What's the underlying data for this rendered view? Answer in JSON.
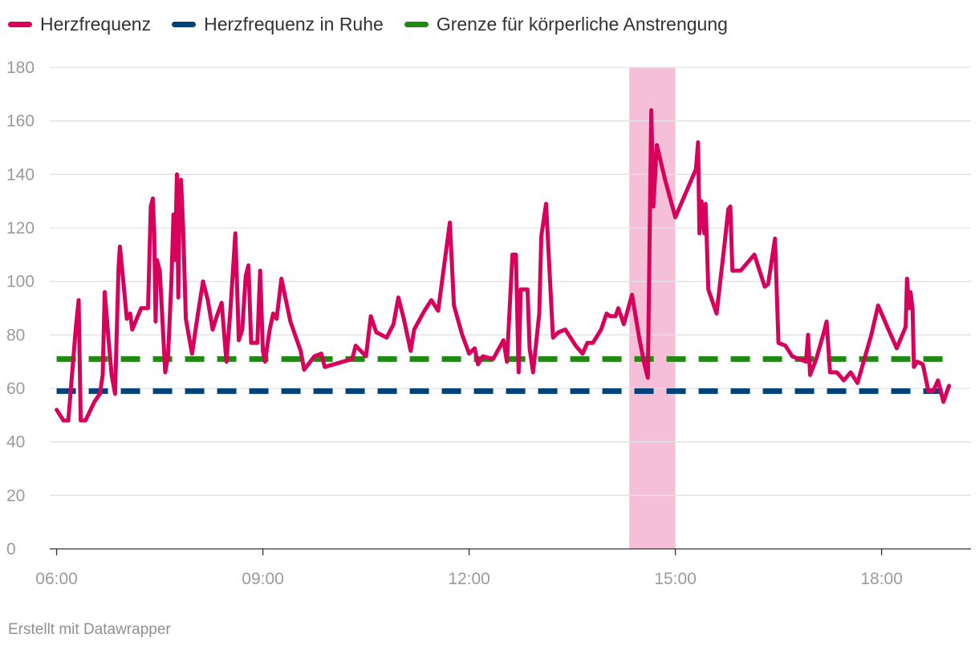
{
  "legend": [
    {
      "label": "Herzfrequenz",
      "color": "#d8005a"
    },
    {
      "label": "Herzfrequenz in Ruhe",
      "color": "#00427a"
    },
    {
      "label": "Grenze für körperliche Anstrengung",
      "color": "#1f8a12"
    }
  ],
  "credit": "Erstellt mit Datawrapper",
  "chart_data": {
    "type": "line",
    "title": "",
    "xlabel": "",
    "ylabel": "",
    "x_unit": "hours of day",
    "xlim": [
      5.9,
      19.3
    ],
    "ylim": [
      0,
      180
    ],
    "y_ticks": [
      0,
      20,
      40,
      60,
      80,
      100,
      120,
      140,
      160,
      180
    ],
    "x_ticks": [
      {
        "value": 6,
        "label": "06:00"
      },
      {
        "value": 9,
        "label": "09:00"
      },
      {
        "value": 12,
        "label": "12:00"
      },
      {
        "value": 15,
        "label": "15:00"
      },
      {
        "value": 18,
        "label": "18:00"
      }
    ],
    "grid": true,
    "legend_position": "top-left",
    "highlight_band": {
      "from": 14.33,
      "to": 15.0,
      "color": "#f5bfd8"
    },
    "reference_lines": [
      {
        "name": "Herzfrequenz in Ruhe",
        "value": 59,
        "color": "#00427a",
        "style": "dashed"
      },
      {
        "name": "Grenze für körperliche Anstrengung",
        "value": 71,
        "color": "#1f8a12",
        "style": "dashed"
      }
    ],
    "series": [
      {
        "name": "Herzfrequenz",
        "color": "#d8005a",
        "points": [
          [
            6.0,
            52
          ],
          [
            6.1,
            48
          ],
          [
            6.17,
            48
          ],
          [
            6.28,
            83
          ],
          [
            6.32,
            93
          ],
          [
            6.35,
            48
          ],
          [
            6.42,
            48
          ],
          [
            6.55,
            55
          ],
          [
            6.63,
            58
          ],
          [
            6.67,
            65
          ],
          [
            6.7,
            96
          ],
          [
            6.75,
            80
          ],
          [
            6.8,
            65
          ],
          [
            6.85,
            58
          ],
          [
            6.9,
            105
          ],
          [
            6.92,
            113
          ],
          [
            6.97,
            100
          ],
          [
            7.02,
            86
          ],
          [
            7.07,
            88
          ],
          [
            7.1,
            82
          ],
          [
            7.18,
            87
          ],
          [
            7.23,
            90
          ],
          [
            7.33,
            90
          ],
          [
            7.37,
            128
          ],
          [
            7.4,
            131
          ],
          [
            7.42,
            118
          ],
          [
            7.44,
            85
          ],
          [
            7.46,
            108
          ],
          [
            7.5,
            104
          ],
          [
            7.55,
            80
          ],
          [
            7.58,
            66
          ],
          [
            7.62,
            72
          ],
          [
            7.67,
            100
          ],
          [
            7.7,
            125
          ],
          [
            7.72,
            108
          ],
          [
            7.75,
            140
          ],
          [
            7.77,
            94
          ],
          [
            7.79,
            133
          ],
          [
            7.81,
            138
          ],
          [
            7.84,
            120
          ],
          [
            7.88,
            86
          ],
          [
            7.92,
            80
          ],
          [
            7.97,
            73
          ],
          [
            8.05,
            87
          ],
          [
            8.13,
            100
          ],
          [
            8.2,
            93
          ],
          [
            8.27,
            82
          ],
          [
            8.33,
            87
          ],
          [
            8.4,
            92
          ],
          [
            8.47,
            70
          ],
          [
            8.53,
            90
          ],
          [
            8.6,
            118
          ],
          [
            8.65,
            78
          ],
          [
            8.7,
            82
          ],
          [
            8.75,
            102
          ],
          [
            8.79,
            106
          ],
          [
            8.83,
            77
          ],
          [
            8.92,
            77
          ],
          [
            8.96,
            104
          ],
          [
            9.0,
            74
          ],
          [
            9.03,
            70
          ],
          [
            9.1,
            82
          ],
          [
            9.15,
            88
          ],
          [
            9.2,
            86
          ],
          [
            9.27,
            101
          ],
          [
            9.4,
            85
          ],
          [
            9.55,
            74
          ],
          [
            9.6,
            67
          ],
          [
            9.75,
            72
          ],
          [
            9.85,
            73
          ],
          [
            9.9,
            68
          ],
          [
            10.3,
            71
          ],
          [
            10.35,
            76
          ],
          [
            10.5,
            72
          ],
          [
            10.57,
            87
          ],
          [
            10.65,
            81
          ],
          [
            10.8,
            79
          ],
          [
            10.9,
            84
          ],
          [
            10.97,
            94
          ],
          [
            11.05,
            86
          ],
          [
            11.15,
            74
          ],
          [
            11.2,
            82
          ],
          [
            11.35,
            89
          ],
          [
            11.45,
            93
          ],
          [
            11.55,
            89
          ],
          [
            11.72,
            122
          ],
          [
            11.78,
            91
          ],
          [
            11.9,
            80
          ],
          [
            12.0,
            73
          ],
          [
            12.08,
            75
          ],
          [
            12.13,
            69
          ],
          [
            12.2,
            72
          ],
          [
            12.35,
            71
          ],
          [
            12.5,
            78
          ],
          [
            12.55,
            70
          ],
          [
            12.63,
            110
          ],
          [
            12.68,
            110
          ],
          [
            12.72,
            66
          ],
          [
            12.75,
            97
          ],
          [
            12.85,
            97
          ],
          [
            12.88,
            75
          ],
          [
            12.93,
            66
          ],
          [
            13.02,
            88
          ],
          [
            13.05,
            117
          ],
          [
            13.12,
            129
          ],
          [
            13.22,
            79
          ],
          [
            13.3,
            81
          ],
          [
            13.4,
            82
          ],
          [
            13.55,
            76
          ],
          [
            13.65,
            73
          ],
          [
            13.72,
            77
          ],
          [
            13.8,
            77
          ],
          [
            13.92,
            82
          ],
          [
            14.0,
            88
          ],
          [
            14.05,
            87
          ],
          [
            14.13,
            87
          ],
          [
            14.17,
            90
          ],
          [
            14.25,
            84
          ],
          [
            14.37,
            95
          ],
          [
            14.48,
            78
          ],
          [
            14.55,
            69
          ],
          [
            14.6,
            64
          ],
          [
            14.65,
            164
          ],
          [
            14.68,
            128
          ],
          [
            14.73,
            151
          ],
          [
            14.85,
            138
          ],
          [
            15.0,
            124
          ],
          [
            15.3,
            142
          ],
          [
            15.33,
            152
          ],
          [
            15.35,
            118
          ],
          [
            15.38,
            130
          ],
          [
            15.42,
            118
          ],
          [
            15.44,
            129
          ],
          [
            15.48,
            97
          ],
          [
            15.6,
            88
          ],
          [
            15.72,
            115
          ],
          [
            15.77,
            127
          ],
          [
            15.8,
            128
          ],
          [
            15.83,
            104
          ],
          [
            15.95,
            104
          ],
          [
            16.15,
            110
          ],
          [
            16.3,
            98
          ],
          [
            16.35,
            99
          ],
          [
            16.45,
            116
          ],
          [
            16.5,
            77
          ],
          [
            16.6,
            76
          ],
          [
            16.7,
            72
          ],
          [
            16.9,
            70
          ],
          [
            16.93,
            80
          ],
          [
            16.96,
            65
          ],
          [
            17.05,
            71
          ],
          [
            17.15,
            80
          ],
          [
            17.2,
            85
          ],
          [
            17.25,
            66
          ],
          [
            17.35,
            66
          ],
          [
            17.45,
            63
          ],
          [
            17.55,
            66
          ],
          [
            17.65,
            62
          ],
          [
            17.85,
            80
          ],
          [
            17.95,
            91
          ],
          [
            18.1,
            82
          ],
          [
            18.22,
            75
          ],
          [
            18.35,
            83
          ],
          [
            18.37,
            101
          ],
          [
            18.4,
            90
          ],
          [
            18.42,
            96
          ],
          [
            18.45,
            90
          ],
          [
            18.47,
            68
          ],
          [
            18.52,
            70
          ],
          [
            18.6,
            69
          ],
          [
            18.68,
            59
          ],
          [
            18.75,
            59
          ],
          [
            18.82,
            63
          ],
          [
            18.9,
            55
          ],
          [
            18.98,
            61
          ]
        ]
      }
    ]
  }
}
